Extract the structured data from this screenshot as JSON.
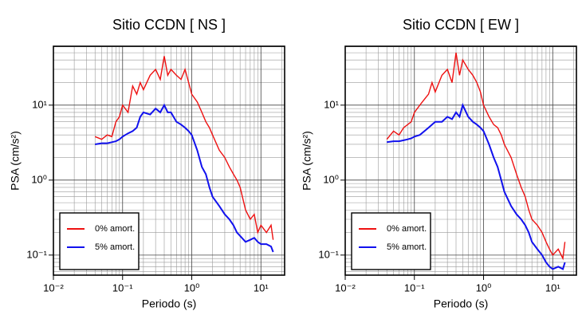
{
  "chart_data": [
    {
      "type": "line",
      "title": "Sitio CCDN [ NS ]",
      "x_label": "Periodo (s)",
      "y_label": "PSA (cm/s²)",
      "log_x": true,
      "log_y": true,
      "grid": true,
      "legend": "lower left",
      "xlim": [
        0.01,
        22
      ],
      "ylim": [
        0.054,
        61
      ],
      "xticks": [
        {
          "value": 0.01,
          "label": "10⁻²"
        },
        {
          "value": 0.1,
          "label": "10⁻¹"
        },
        {
          "value": 1,
          "label": "10⁰"
        },
        {
          "value": 10,
          "label": "10¹"
        }
      ],
      "yticks": [
        {
          "value": 0.1,
          "label": "10⁻¹"
        },
        {
          "value": 1,
          "label": "10⁰"
        },
        {
          "value": 10,
          "label": "10¹"
        }
      ],
      "x": [
        0.04,
        0.05,
        0.06,
        0.07,
        0.08,
        0.09,
        0.1,
        0.12,
        0.14,
        0.16,
        0.18,
        0.2,
        0.25,
        0.3,
        0.35,
        0.4,
        0.45,
        0.5,
        0.6,
        0.7,
        0.8,
        0.9,
        1.0,
        1.2,
        1.4,
        1.6,
        1.8,
        2.0,
        2.5,
        3,
        3.5,
        4,
        4.5,
        5,
        6,
        7,
        8,
        9,
        10,
        12,
        14,
        15
      ],
      "series": [
        {
          "name": "0% amort.",
          "color": "#ee1111",
          "values": [
            3.8,
            3.5,
            4,
            3.8,
            6,
            7,
            10,
            8,
            18,
            14,
            20,
            16,
            25,
            30,
            22,
            45,
            25,
            30,
            25,
            22,
            30,
            20,
            14,
            11,
            8,
            6,
            5,
            4,
            2.5,
            2,
            1.5,
            1.2,
            1.0,
            0.8,
            0.4,
            0.3,
            0.35,
            0.2,
            0.25,
            0.2,
            0.25,
            0.16
          ]
        },
        {
          "name": "5% amort.",
          "color": "#1111ee",
          "values": [
            3.0,
            3.1,
            3.1,
            3.2,
            3.3,
            3.5,
            3.8,
            4.2,
            4.5,
            5,
            7,
            8,
            7.5,
            9,
            8,
            10,
            8,
            8,
            6,
            5.5,
            5,
            4.5,
            4,
            2.5,
            1.5,
            1.2,
            0.8,
            0.6,
            0.45,
            0.35,
            0.3,
            0.25,
            0.2,
            0.18,
            0.15,
            0.16,
            0.17,
            0.15,
            0.14,
            0.14,
            0.13,
            0.11
          ]
        }
      ]
    },
    {
      "type": "line",
      "title": "Sitio CCDN [ EW ]",
      "x_label": "Periodo (s)",
      "y_label": "PSA (cm/s²)",
      "log_x": true,
      "log_y": true,
      "grid": true,
      "legend": "lower left",
      "xlim": [
        0.01,
        22
      ],
      "ylim": [
        0.054,
        61
      ],
      "xticks": [
        {
          "value": 0.01,
          "label": "10⁻²"
        },
        {
          "value": 0.1,
          "label": "10⁻¹"
        },
        {
          "value": 1,
          "label": "10⁰"
        },
        {
          "value": 10,
          "label": "10¹"
        }
      ],
      "yticks": [
        {
          "value": 0.1,
          "label": "10⁻¹"
        },
        {
          "value": 1,
          "label": "10⁰"
        },
        {
          "value": 10,
          "label": "10¹"
        }
      ],
      "x": [
        0.04,
        0.05,
        0.06,
        0.07,
        0.08,
        0.09,
        0.1,
        0.12,
        0.14,
        0.16,
        0.18,
        0.2,
        0.25,
        0.3,
        0.35,
        0.4,
        0.45,
        0.5,
        0.6,
        0.7,
        0.8,
        0.9,
        1.0,
        1.2,
        1.4,
        1.6,
        1.8,
        2.0,
        2.5,
        3,
        3.5,
        4,
        4.5,
        5,
        6,
        7,
        8,
        9,
        10,
        12,
        14,
        15
      ],
      "series": [
        {
          "name": "0% amort.",
          "color": "#ee1111",
          "values": [
            3.5,
            4.5,
            4,
            5,
            5.5,
            6,
            8,
            10,
            12,
            14,
            20,
            15,
            25,
            30,
            20,
            50,
            25,
            40,
            30,
            25,
            20,
            15,
            10,
            7,
            5.5,
            5,
            4,
            3,
            2,
            1.2,
            0.8,
            0.6,
            0.4,
            0.3,
            0.25,
            0.2,
            0.15,
            0.12,
            0.1,
            0.12,
            0.09,
            0.15
          ]
        },
        {
          "name": "5% amort.",
          "color": "#1111ee",
          "values": [
            3.2,
            3.3,
            3.3,
            3.4,
            3.5,
            3.6,
            3.8,
            4,
            4.5,
            5,
            5.5,
            6,
            6,
            7,
            6.5,
            8,
            7,
            10,
            7,
            6,
            5.5,
            5,
            4.5,
            3,
            2,
            1.5,
            1,
            0.7,
            0.45,
            0.35,
            0.3,
            0.25,
            0.2,
            0.15,
            0.12,
            0.1,
            0.08,
            0.07,
            0.065,
            0.07,
            0.065,
            0.08
          ]
        }
      ]
    }
  ]
}
